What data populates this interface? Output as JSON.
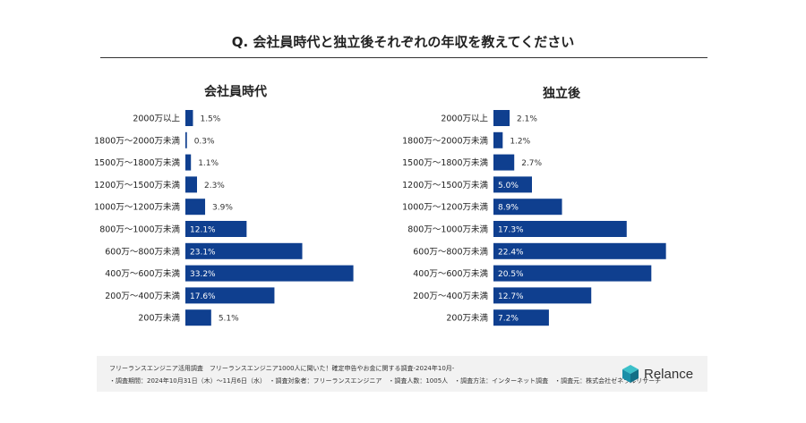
{
  "page": {
    "title": "Q. 会社員時代と独立後それぞれの年収を教えてください"
  },
  "chart_data": [
    {
      "type": "bar",
      "orientation": "horizontal",
      "title": "会社員時代",
      "categories": [
        "2000万以上",
        "1800万〜2000万未満",
        "1500万〜1800万未満",
        "1200万〜1500万未満",
        "1000万〜1200万未満",
        "800万〜1000万未満",
        "600万〜800万未満",
        "400万〜600万未満",
        "200万〜400万未満",
        "200万未満"
      ],
      "values": [
        1.5,
        0.3,
        1.1,
        2.3,
        3.9,
        12.1,
        23.1,
        33.2,
        17.6,
        5.1
      ],
      "value_labels": [
        "1.5%",
        "0.3%",
        "1.1%",
        "2.3%",
        "3.9%",
        "12.1%",
        "23.1%",
        "33.2%",
        "17.6%",
        "5.1%"
      ],
      "xlim": [
        0,
        35
      ],
      "color": "#0f3f8f"
    },
    {
      "type": "bar",
      "orientation": "horizontal",
      "title": "独立後",
      "categories": [
        "2000万以上",
        "1800万〜2000万未満",
        "1500万〜1800万未満",
        "1200万〜1500万未満",
        "1000万〜1200万未満",
        "800万〜1000万未満",
        "600万〜800万未満",
        "400万〜600万未満",
        "200万〜400万未満",
        "200万未満"
      ],
      "values": [
        2.1,
        1.2,
        2.7,
        5.0,
        8.9,
        17.3,
        22.4,
        20.5,
        12.7,
        7.2
      ],
      "value_labels": [
        "2.1%",
        "1.2%",
        "2.7%",
        "5.0%",
        "8.9%",
        "17.3%",
        "22.4%",
        "20.5%",
        "12.7%",
        "7.2%"
      ],
      "xlim": [
        0,
        24
      ],
      "color": "#0f3f8f"
    }
  ],
  "footer": {
    "line1": "フリーランスエンジニア活用調査　フリーランスエンジニア1000人に聞いた！確定申告やお金に関する調査-2024年10月-",
    "line2": "・調査期間：2024年10月31日（木）〜11月6日（水）　・調査対象者：フリーランスエンジニア　・調査人数：1005人　・調査方法：インターネット調査　・調査元：株式会社ゼネラルリサーチ",
    "brand": "Relance",
    "brand_icon": "relance-cube-logo-icon",
    "brand_color": "#2a9fb0"
  }
}
